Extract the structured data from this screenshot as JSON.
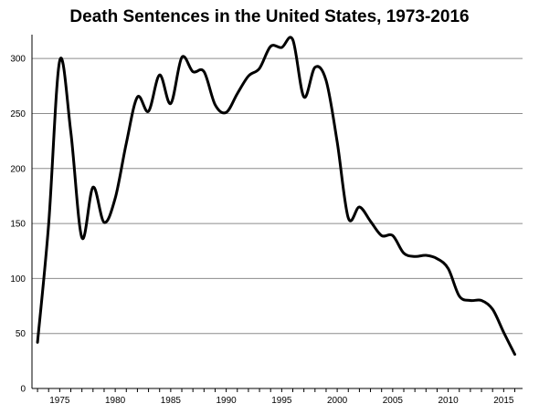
{
  "chart_data": {
    "type": "line",
    "title": "Death Sentences in the United States, 1973-2016",
    "xlabel": "",
    "ylabel": "",
    "xlim": [
      1972.5,
      2016.7
    ],
    "ylim": [
      0,
      320
    ],
    "x_ticks": [
      1975,
      1980,
      1985,
      1990,
      1995,
      2000,
      2005,
      2010,
      2015
    ],
    "y_ticks": [
      0,
      50,
      100,
      150,
      200,
      250,
      300
    ],
    "grid": "horizontal",
    "legend": "none",
    "line_color": "#000000",
    "series": [
      {
        "x": [
          1973,
          1974,
          1975,
          1976,
          1977,
          1978,
          1979,
          1980,
          1981,
          1982,
          1983,
          1984,
          1985,
          1986,
          1987,
          1988,
          1989,
          1990,
          1991,
          1992,
          1993,
          1994,
          1995,
          1996,
          1997,
          1998,
          1999,
          2000,
          2001,
          2002,
          2003,
          2004,
          2005,
          2006,
          2007,
          2008,
          2009,
          2010,
          2011,
          2012,
          2013,
          2014,
          2015,
          2016
        ],
        "values": [
          42,
          149,
          298,
          233,
          137,
          183,
          151,
          173,
          223,
          265,
          252,
          285,
          259,
          301,
          288,
          288,
          258,
          251,
          268,
          284,
          291,
          311,
          310,
          317,
          265,
          292,
          280,
          224,
          155,
          165,
          152,
          139,
          139,
          123,
          120,
          121,
          118,
          109,
          84,
          80,
          80,
          72,
          51,
          31
        ]
      }
    ]
  }
}
